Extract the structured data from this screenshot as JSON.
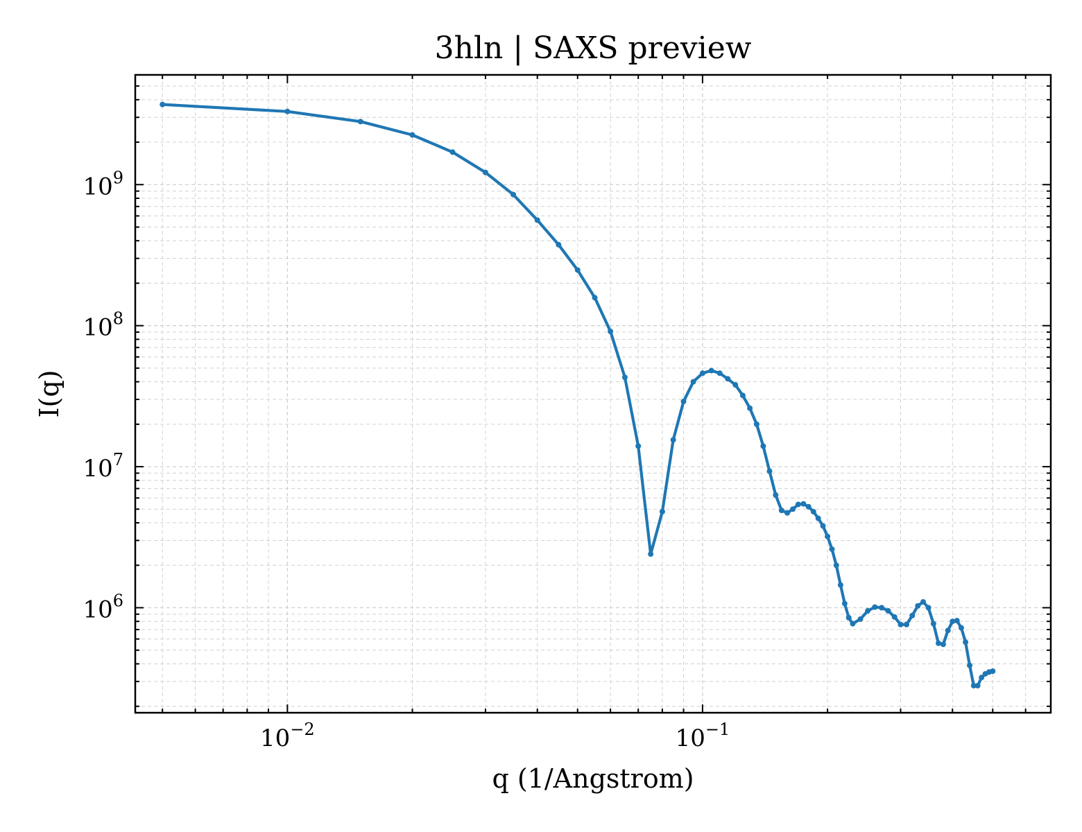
{
  "chart_data": {
    "type": "line",
    "title": "3hln | SAXS preview",
    "xlabel": "q (1/Angstrom)",
    "ylabel": "I(q)",
    "xscale": "log",
    "yscale": "log",
    "xlim": [
      0.0043,
      0.69
    ],
    "ylim": [
      180000,
      6000000000
    ],
    "grid": true,
    "legend": "none",
    "colors": {
      "line": "#1f77b4",
      "grid": "#d0d0d0",
      "axes": "#000000"
    },
    "x_major_ticks": [
      {
        "value": 0.01,
        "base": "10",
        "exp": "−2"
      },
      {
        "value": 0.1,
        "base": "10",
        "exp": "−1"
      }
    ],
    "y_major_ticks": [
      {
        "value": 1000000,
        "base": "10",
        "exp": "6"
      },
      {
        "value": 10000000,
        "base": "10",
        "exp": "7"
      },
      {
        "value": 100000000,
        "base": "10",
        "exp": "8"
      },
      {
        "value": 1000000000,
        "base": "10",
        "exp": "9"
      }
    ],
    "series": [
      {
        "marker": "circle",
        "x": [
          0.005,
          0.01,
          0.015,
          0.02,
          0.025,
          0.03,
          0.035,
          0.04,
          0.045,
          0.05,
          0.055,
          0.06,
          0.065,
          0.07,
          0.075,
          0.08,
          0.085,
          0.09,
          0.095,
          0.1,
          0.105,
          0.11,
          0.115,
          0.12,
          0.125,
          0.13,
          0.135,
          0.14,
          0.145,
          0.15,
          0.155,
          0.16,
          0.165,
          0.17,
          0.175,
          0.18,
          0.185,
          0.19,
          0.195,
          0.2,
          0.205,
          0.21,
          0.215,
          0.22,
          0.225,
          0.23,
          0.24,
          0.25,
          0.26,
          0.27,
          0.28,
          0.29,
          0.3,
          0.31,
          0.32,
          0.33,
          0.34,
          0.35,
          0.36,
          0.37,
          0.38,
          0.39,
          0.4,
          0.41,
          0.42,
          0.43,
          0.44,
          0.45,
          0.46,
          0.47,
          0.48,
          0.49,
          0.5
        ],
        "y": [
          3700000000,
          3300000000,
          2800000000,
          2250000000,
          1700000000,
          1220000000,
          850000000,
          560000000,
          375000000,
          248000000,
          158000000,
          91000000,
          43000000,
          14000000,
          2400000,
          4800000,
          15500000,
          29000000,
          40000000,
          46000000,
          48000000,
          46000000,
          42000000,
          38000000,
          32000000,
          26000000,
          20000000,
          14000000,
          9300000,
          6300000,
          4900000,
          4700000,
          5000000,
          5400000,
          5450000,
          5200000,
          4800000,
          4300000,
          3800000,
          3200000,
          2600000,
          2000000,
          1450000,
          1070000,
          850000,
          770000,
          830000,
          950000,
          1010000,
          1000000,
          950000,
          860000,
          760000,
          760000,
          880000,
          1030000,
          1100000,
          1000000,
          770000,
          560000,
          550000,
          690000,
          800000,
          810000,
          720000,
          570000,
          390000,
          280000,
          280000,
          320000,
          340000,
          350000,
          355000
        ]
      }
    ]
  }
}
